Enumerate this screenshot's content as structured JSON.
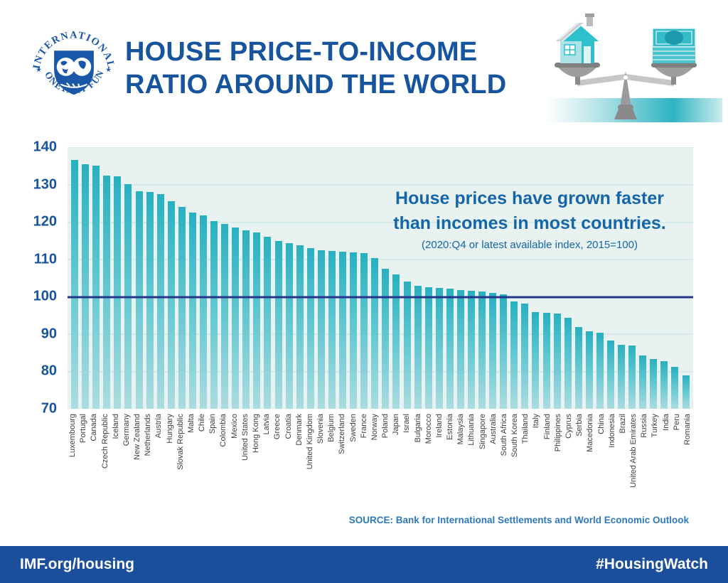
{
  "header": {
    "title_line1": "HOUSE PRICE-TO-INCOME",
    "title_line2": "RATIO AROUND THE WORLD",
    "logo": {
      "top_text": "INTERNATIONAL",
      "bottom_text": "MONETARY FUND",
      "star": "★"
    }
  },
  "colors": {
    "brand_blue": "#17549e",
    "footer_blue": "#1b4f9c",
    "teal_bar": "#28b0c0",
    "reference_navy": "#26368a",
    "plot_background": "#e8f3f1"
  },
  "chart_data": {
    "type": "bar",
    "title": "House Price-to-Income Ratio Around the World",
    "xlabel": "",
    "ylabel": "",
    "ylim": [
      70,
      140
    ],
    "yticks": [
      70,
      80,
      90,
      100,
      110,
      120,
      130,
      140
    ],
    "reference_line": 100,
    "grid": true,
    "legend_position": "none",
    "annotation": {
      "line1": "House prices have grown faster",
      "line2": "than incomes in most countries.",
      "note": "(2020:Q4 or latest available index, 2015=100)"
    },
    "categories": [
      "Luxembourg",
      "Portugal",
      "Canada",
      "Czech Republic",
      "Iceland",
      "Germany",
      "New Zealand",
      "Netherlands",
      "Austria",
      "Hungary",
      "Slovak Republic",
      "Malta",
      "Chile",
      "Spain",
      "Colombia",
      "Mexico",
      "United States",
      "Hong Kong",
      "Latvia",
      "Greece",
      "Croatia",
      "Denmark",
      "United Kingdom",
      "Slovenia",
      "Belgium",
      "Switzerland",
      "Sweden",
      "France",
      "Norway",
      "Poland",
      "Japan",
      "Israel",
      "Bulgaria",
      "Morocco",
      "Ireland",
      "Estonia",
      "Malaysia",
      "Lithuania",
      "Singapore",
      "Australia",
      "South Africa",
      "South Korea",
      "Thailand",
      "Italy",
      "Finland",
      "Philippines",
      "Cyprus",
      "Serbia",
      "Macedonia",
      "China",
      "Indonesia",
      "Brazil",
      "United Arab Emirates",
      "Russia",
      "Turkey",
      "India",
      "Peru",
      "Romania"
    ],
    "values": [
      136.8,
      135.6,
      135.2,
      132.6,
      132.4,
      130.2,
      128.4,
      128.1,
      127.6,
      125.7,
      124.2,
      122.6,
      121.8,
      120.4,
      119.5,
      118.6,
      117.8,
      117.3,
      116.2,
      115.0,
      114.4,
      113.8,
      113.1,
      112.6,
      112.3,
      112.1,
      111.9,
      111.7,
      110.5,
      107.6,
      106.1,
      104.1,
      103.0,
      102.6,
      102.4,
      102.2,
      101.9,
      101.7,
      101.4,
      101.1,
      100.7,
      98.8,
      98.3,
      96.0,
      95.8,
      95.6,
      94.4,
      91.9,
      90.7,
      90.5,
      88.4,
      87.1,
      86.9,
      84.3,
      83.3,
      82.7,
      81.3,
      78.9
    ]
  },
  "source": "SOURCE: Bank for International Settlements and World Economic Outlook",
  "footer": {
    "left": "IMF.org/housing",
    "right": "#HousingWatch"
  }
}
